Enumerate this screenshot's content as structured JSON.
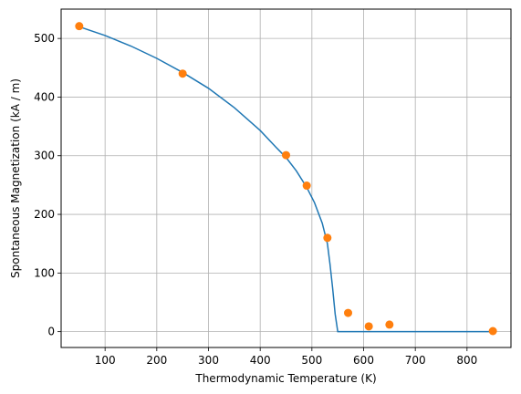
{
  "chart_data": {
    "type": "line",
    "title": "",
    "xlabel": "Thermodynamic Temperature (K)",
    "ylabel": "Spontaneous Magnetization (kA / m)",
    "xlim": [
      15,
      885
    ],
    "ylim": [
      -27,
      550
    ],
    "xticks": [
      100,
      200,
      300,
      400,
      500,
      600,
      700,
      800
    ],
    "yticks": [
      0,
      100,
      200,
      300,
      400,
      500
    ],
    "grid": true,
    "legend": "none",
    "colors": {
      "line": "#1f77b4",
      "points": "#ff7f0e",
      "grid": "#b0b0b0"
    },
    "series": [
      {
        "kind": "line",
        "x": [
          50,
          100,
          150,
          200,
          250,
          300,
          350,
          400,
          430,
          450,
          470,
          490,
          505,
          520,
          530,
          535,
          540,
          545,
          550,
          560,
          600,
          650,
          700,
          750,
          800,
          850
        ],
        "y": [
          520,
          505,
          487,
          466,
          442,
          415,
          382,
          343,
          315,
          297,
          274,
          246,
          220,
          185,
          150,
          115,
          75,
          30,
          0,
          0,
          0,
          0,
          0,
          0,
          0,
          0
        ]
      },
      {
        "kind": "scatter",
        "x": [
          50,
          250,
          450,
          490,
          530,
          570,
          610,
          650,
          850
        ],
        "y": [
          521,
          440,
          301,
          249,
          160,
          32,
          9,
          12,
          1
        ]
      }
    ]
  }
}
